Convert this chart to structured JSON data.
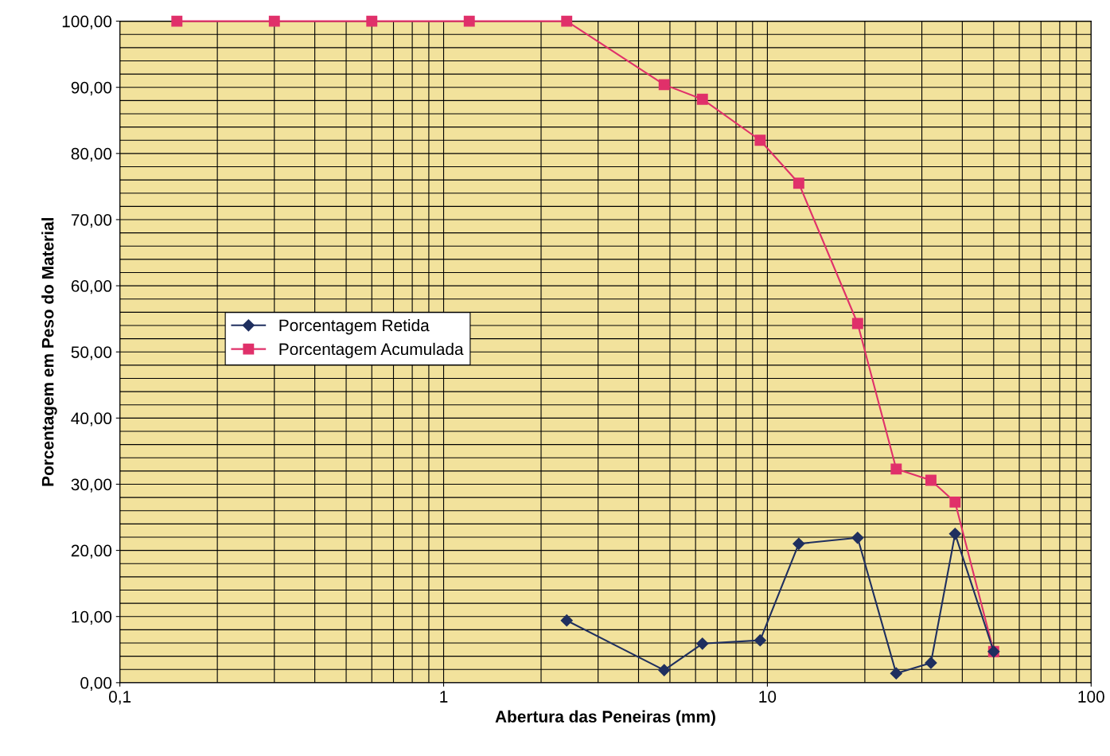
{
  "chart_data": {
    "type": "line",
    "xlabel": "Abertura das Peneiras (mm)",
    "ylabel": "Porcentagem em Peso do Material",
    "log": "x",
    "xlim": [
      0.1,
      100
    ],
    "xticks": [
      {
        "value": 0.1,
        "label": "0,1"
      },
      1,
      10,
      100
    ],
    "ylim": [
      0,
      100
    ],
    "yticks": [
      {
        "value": 0,
        "label": "0,00"
      },
      {
        "value": 10,
        "label": "10,00"
      },
      {
        "value": 20,
        "label": "20,00"
      },
      {
        "value": 30,
        "label": "30,00"
      },
      {
        "value": 40,
        "label": "40,00"
      },
      {
        "value": 50,
        "label": "50,00"
      },
      {
        "value": 60,
        "label": "60,00"
      },
      {
        "value": 70,
        "label": "70,00"
      },
      {
        "value": 80,
        "label": "80,00"
      },
      {
        "value": 90,
        "label": "90,00"
      },
      {
        "value": 100,
        "label": "100,00"
      }
    ],
    "grid": true,
    "legend": "left",
    "series": [
      {
        "name": "Porcentagem Retida",
        "color": "#1f2f5f",
        "marker": "diamond",
        "x": [
          2.4,
          4.8,
          6.3,
          9.5,
          12.5,
          19,
          25,
          32,
          38,
          50
        ],
        "values": [
          9.4,
          1.9,
          5.9,
          6.4,
          21.0,
          21.9,
          1.4,
          3.0,
          22.5,
          4.7
        ]
      },
      {
        "name": "Porcentagem Acumulada",
        "color": "#e0306a",
        "marker": "square",
        "x": [
          0.15,
          0.3,
          0.6,
          1.2,
          2.4,
          4.8,
          6.3,
          9.5,
          12.5,
          19,
          25,
          32,
          38,
          50
        ],
        "values": [
          100,
          100,
          100,
          100,
          100,
          90.4,
          88.2,
          82.0,
          75.5,
          54.3,
          32.3,
          30.6,
          27.3,
          4.7
        ]
      }
    ]
  }
}
